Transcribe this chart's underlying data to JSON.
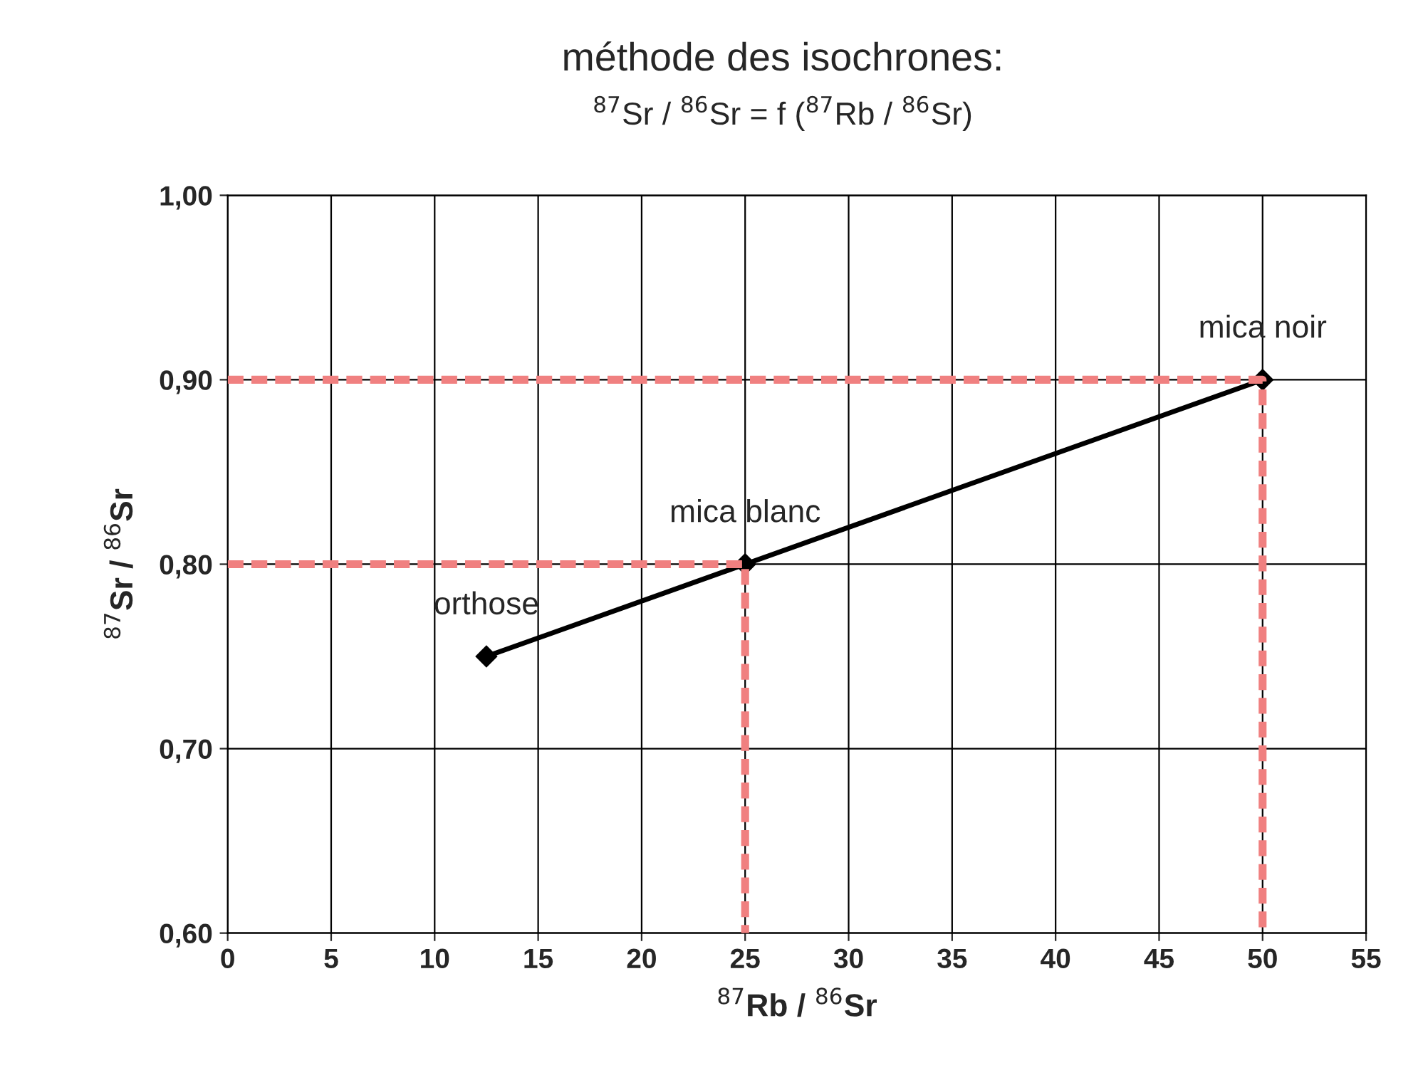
{
  "chart_data": {
    "type": "line",
    "title": "méthode des isochrones:",
    "subtitle": "$^{87}$Sr / $^{86}$Sr = f ($^{87}$Rb / $^{86}$Sr)",
    "xlabel": "$^{87}$Rb / $^{86}$Sr",
    "ylabel": "$^{87}$Sr / $^{86}$Sr",
    "series": [
      {
        "color": "#000000",
        "x": [
          12.5,
          25,
          50
        ],
        "values": [
          0.75,
          0.8,
          0.9
        ],
        "marker": "diamond",
        "line_style": "solid"
      },
      {
        "color": "#f08080",
        "x": [
          0,
          25,
          25
        ],
        "values": [
          0.8,
          0.8,
          0.6
        ],
        "marker": "none",
        "line_style": "dashed"
      },
      {
        "color": "#f08080",
        "x": [
          0,
          50,
          50
        ],
        "values": [
          0.9,
          0.9,
          0.6
        ],
        "marker": "none",
        "line_style": "dashed"
      }
    ],
    "annotations": [
      {
        "text": "orthose",
        "x": 12.5,
        "y": 0.75
      },
      {
        "text": "mica blanc",
        "x": 25,
        "y": 0.8
      },
      {
        "text": "mica noir",
        "x": 50,
        "y": 0.9
      }
    ],
    "xlim": [
      0,
      55
    ],
    "xticks": [
      0,
      5,
      10,
      15,
      20,
      25,
      30,
      35,
      40,
      45,
      50,
      55
    ],
    "ylim": [
      0.6,
      1.0
    ],
    "yticks": [
      {
        "value": 0.6,
        "label": "0,60"
      },
      {
        "value": 0.7,
        "label": "0,70"
      },
      {
        "value": 0.8,
        "label": "0,80"
      },
      {
        "value": 0.9,
        "label": "0,90"
      },
      {
        "value": 1.0,
        "label": "1,00"
      }
    ],
    "grid": true,
    "legend": false
  }
}
